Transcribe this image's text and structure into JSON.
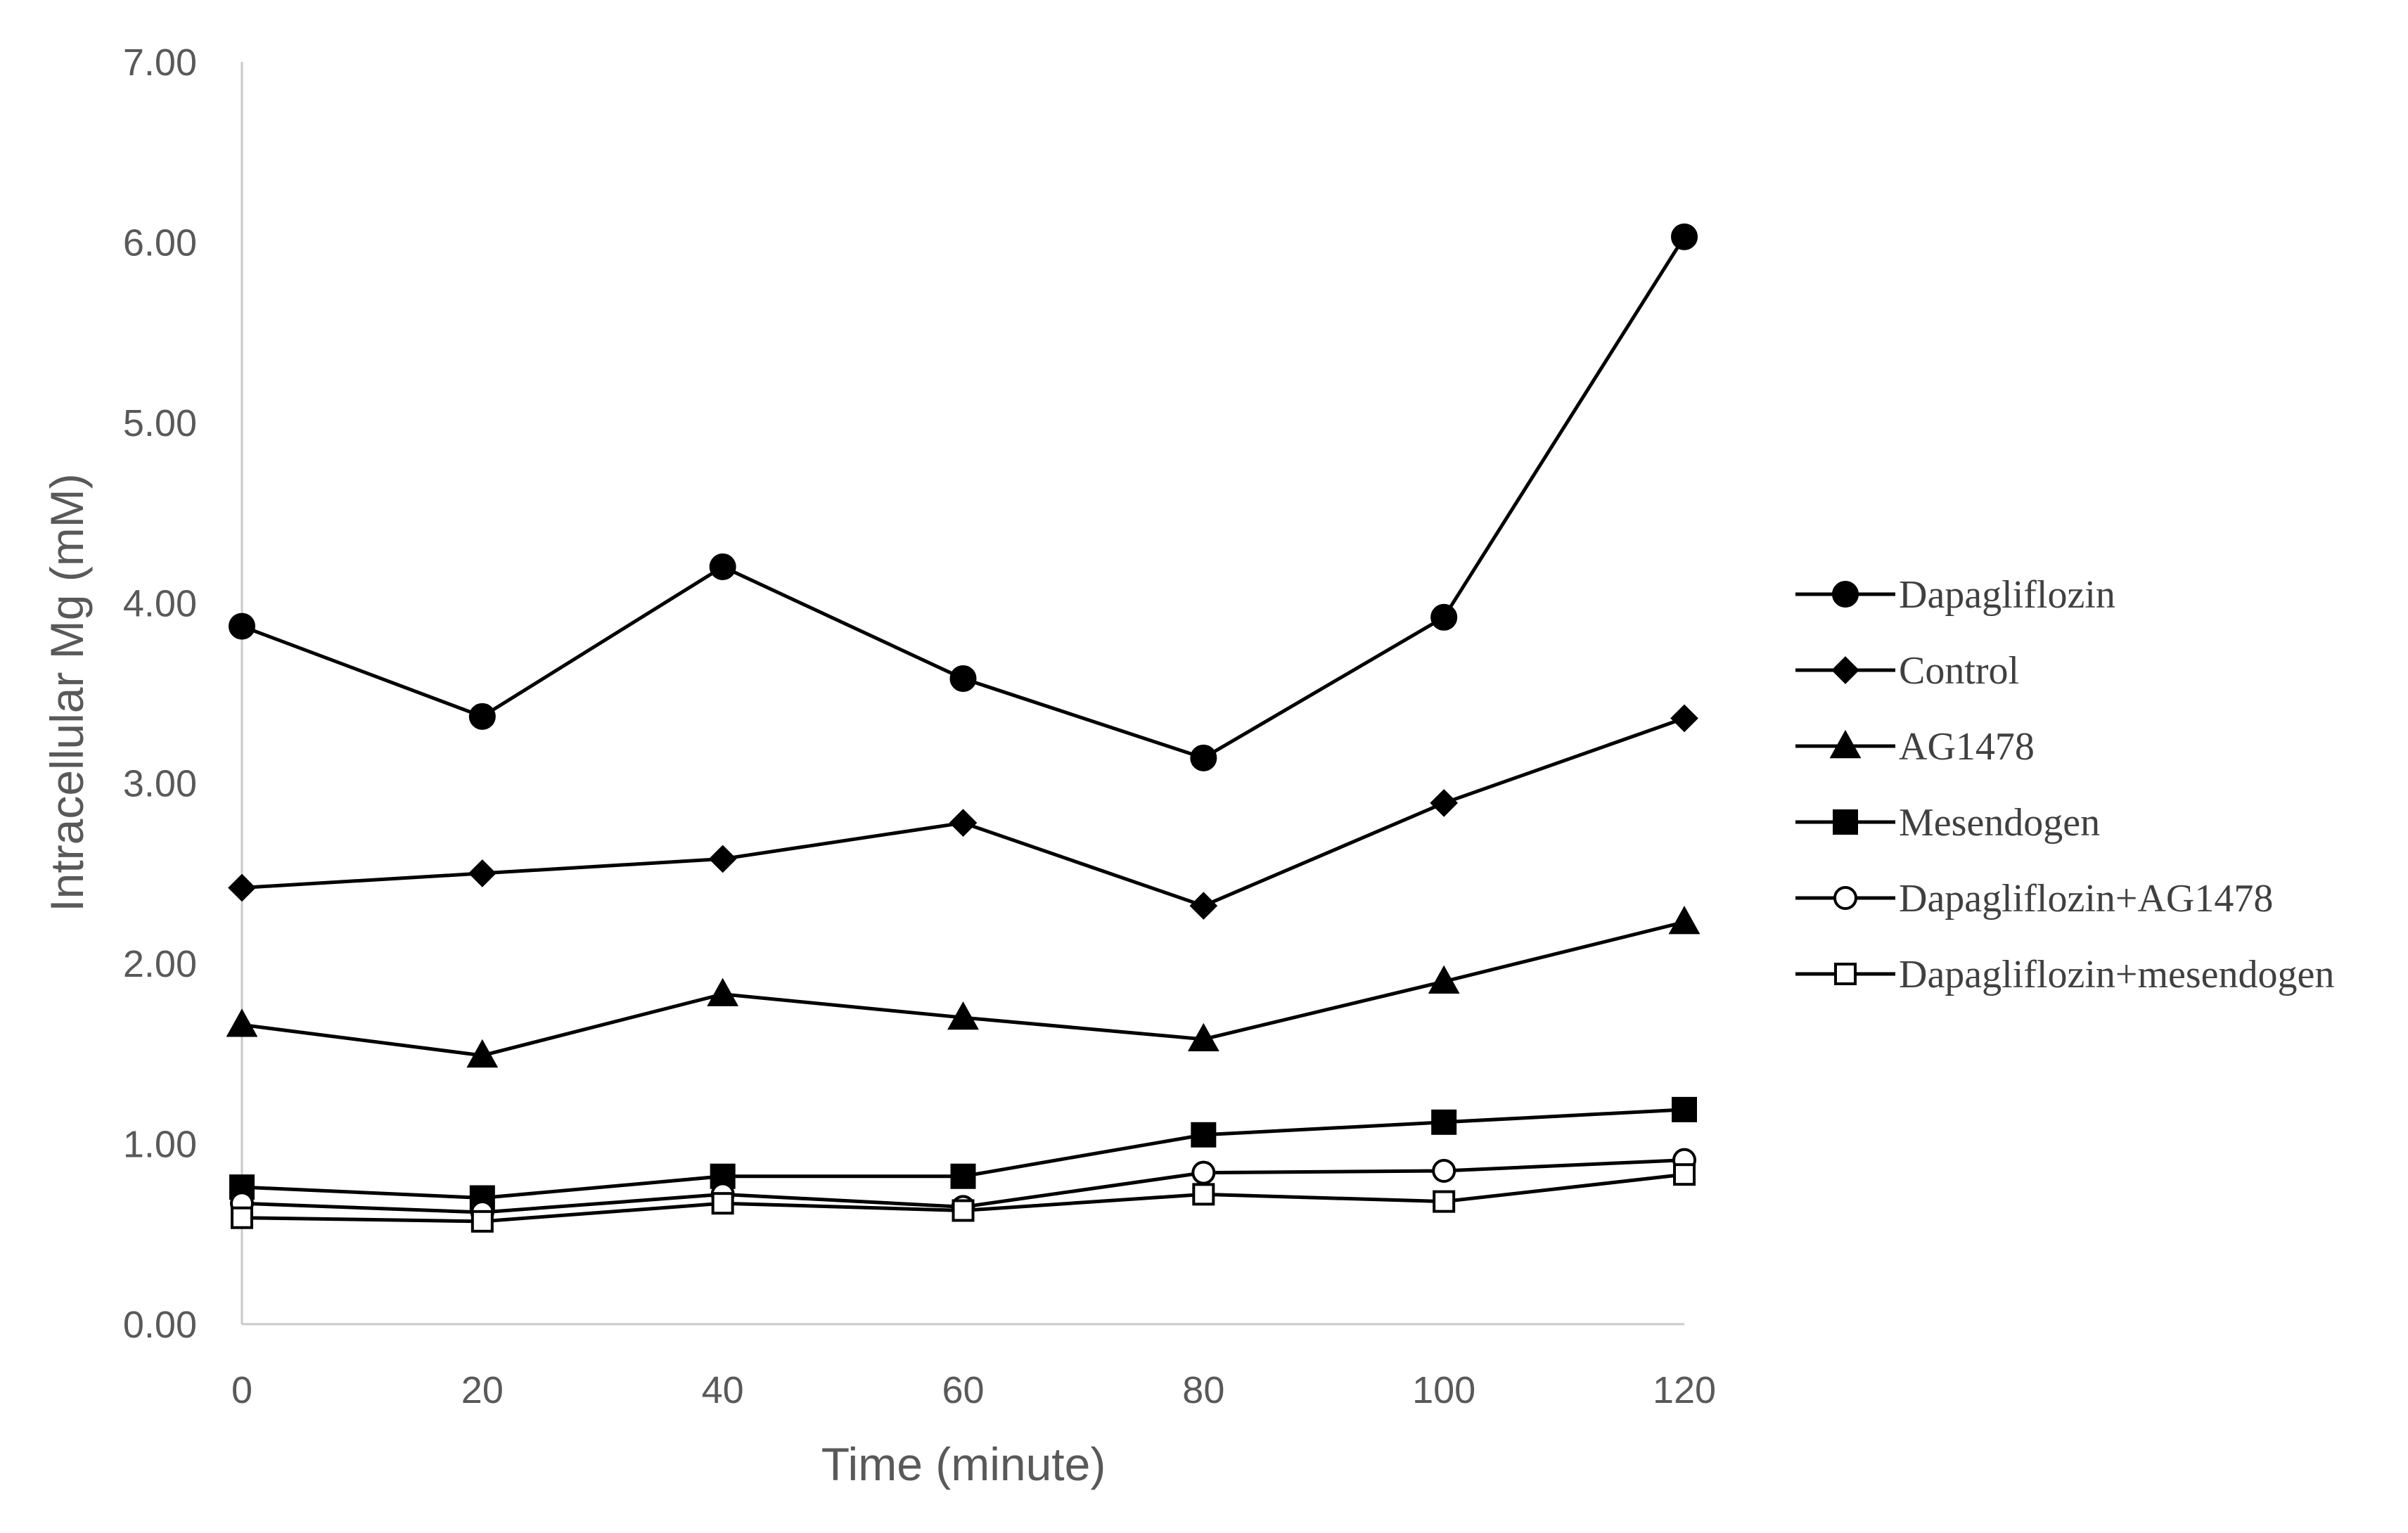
{
  "chart_data": {
    "type": "line",
    "title": "",
    "xlabel": "Time (minute)",
    "ylabel": "Intracellular Mg (mM)",
    "x": [
      0,
      20,
      40,
      60,
      80,
      100,
      120
    ],
    "x_tick_labels": [
      "0",
      "20",
      "40",
      "60",
      "80",
      "100",
      "120"
    ],
    "y_tick_labels": [
      "0.00",
      "1.00",
      "2.00",
      "3.00",
      "4.00",
      "5.00",
      "6.00",
      "7.00"
    ],
    "xlim": [
      0,
      120
    ],
    "ylim": [
      0,
      7
    ],
    "grid": false,
    "legend_position": "right",
    "series": [
      {
        "name": "Dapagliflozin",
        "marker": "filled-circle",
        "color": "#000000",
        "values": [
          3.87,
          3.37,
          4.2,
          3.58,
          3.14,
          3.92,
          6.03
        ]
      },
      {
        "name": "Control",
        "marker": "filled-diamond",
        "color": "#000000",
        "values": [
          2.42,
          2.5,
          2.58,
          2.78,
          2.32,
          2.89,
          3.36
        ]
      },
      {
        "name": "AG1478",
        "marker": "filled-triangle",
        "color": "#000000",
        "values": [
          1.66,
          1.49,
          1.83,
          1.7,
          1.58,
          1.9,
          2.23
        ]
      },
      {
        "name": "Mesendogen",
        "marker": "filled-square",
        "color": "#000000",
        "values": [
          0.76,
          0.7,
          0.82,
          0.82,
          1.05,
          1.12,
          1.19
        ]
      },
      {
        "name": "Dapagliflozin+AG1478",
        "marker": "open-circle",
        "color": "#000000",
        "values": [
          0.67,
          0.62,
          0.72,
          0.65,
          0.84,
          0.85,
          0.91
        ]
      },
      {
        "name": "Dapagliflozin+mesendogen",
        "marker": "open-square",
        "color": "#000000",
        "values": [
          0.59,
          0.57,
          0.67,
          0.63,
          0.72,
          0.68,
          0.83
        ]
      }
    ]
  }
}
